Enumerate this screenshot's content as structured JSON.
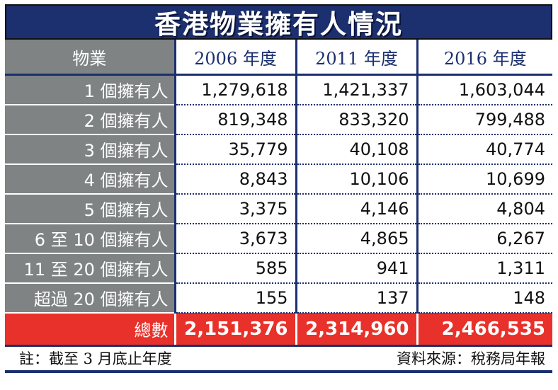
{
  "title": "香港物業擁有人情況",
  "chart_data": {
    "type": "table",
    "title": "香港物業擁有人情況",
    "columns": [
      "物業",
      "2006 年度",
      "2011 年度",
      "2016 年度"
    ],
    "rows": [
      {
        "label": "1 個擁有人",
        "values": [
          "1,279,618",
          "1,421,337",
          "1,603,044"
        ]
      },
      {
        "label": "2 個擁有人",
        "values": [
          "819,348",
          "833,320",
          "799,488"
        ]
      },
      {
        "label": "3 個擁有人",
        "values": [
          "35,779",
          "40,108",
          "40,774"
        ]
      },
      {
        "label": "4 個擁有人",
        "values": [
          "8,843",
          "10,106",
          "10,699"
        ]
      },
      {
        "label": "5 個擁有人",
        "values": [
          "3,375",
          "4,146",
          "4,804"
        ]
      },
      {
        "label": "6 至 10 個擁有人",
        "values": [
          "3,673",
          "4,865",
          "6,267"
        ]
      },
      {
        "label": "11 至 20 個擁有人",
        "values": [
          "585",
          "941",
          "1,311"
        ]
      },
      {
        "label": "超過 20 個擁有人",
        "values": [
          "155",
          "137",
          "148"
        ]
      }
    ],
    "total": {
      "label": "總數",
      "values": [
        "2,151,376",
        "2,314,960",
        "2,466,535"
      ]
    }
  },
  "footer": {
    "note": "註：截至 3 月底止年度",
    "source": "資料來源：稅務局年報"
  },
  "colors": {
    "navy": "#1c2f6e",
    "gray": "#7f8384",
    "red": "#e8312a"
  }
}
